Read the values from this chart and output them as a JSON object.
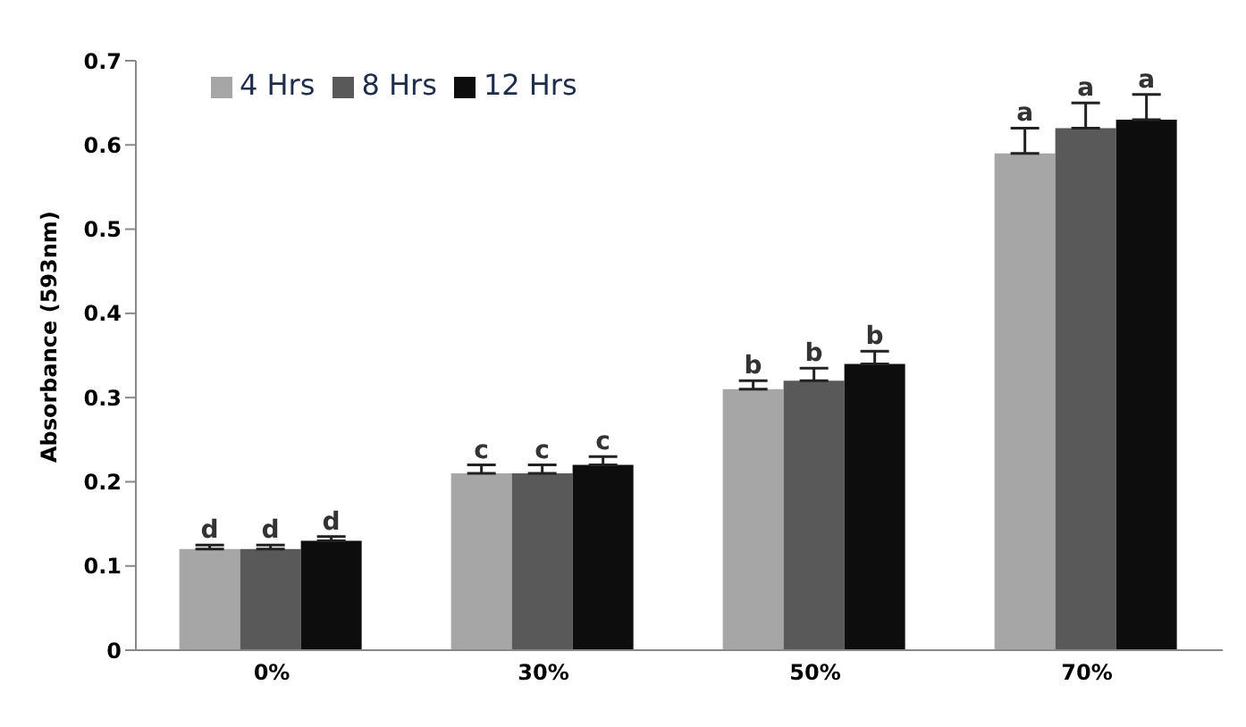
{
  "chart_data": {
    "type": "bar",
    "ylabel": "Absorbance (593nm)",
    "categories": [
      "0%",
      "30%",
      "50%",
      "70%"
    ],
    "series": [
      {
        "name": "4 Hrs",
        "color": "#a6a6a6",
        "values": [
          0.12,
          0.21,
          0.31,
          0.59
        ],
        "errors": [
          [
            0.12,
            0.125
          ],
          [
            0.21,
            0.22
          ],
          [
            0.31,
            0.32
          ],
          [
            0.59,
            0.62
          ]
        ],
        "value_labels": [
          "d",
          "c",
          "b",
          "a"
        ]
      },
      {
        "name": "8 Hrs",
        "color": "#595959",
        "values": [
          0.12,
          0.21,
          0.32,
          0.62
        ],
        "errors": [
          [
            0.12,
            0.125
          ],
          [
            0.21,
            0.22
          ],
          [
            0.32,
            0.335
          ],
          [
            0.62,
            0.65
          ]
        ],
        "value_labels": [
          "d",
          "c",
          "b",
          "a"
        ]
      },
      {
        "name": "12 Hrs",
        "color": "#0d0d0d",
        "values": [
          0.13,
          0.22,
          0.34,
          0.63
        ],
        "errors": [
          [
            0.13,
            0.135
          ],
          [
            0.22,
            0.23
          ],
          [
            0.34,
            0.355
          ],
          [
            0.63,
            0.66
          ]
        ],
        "value_labels": [
          "d",
          "c",
          "b",
          "a"
        ]
      }
    ],
    "ylim": [
      0,
      0.7
    ],
    "yticks": [
      0,
      0.1,
      0.2,
      0.3,
      0.4,
      0.5,
      0.6,
      0.7
    ],
    "grid": false,
    "legend": "top left"
  }
}
